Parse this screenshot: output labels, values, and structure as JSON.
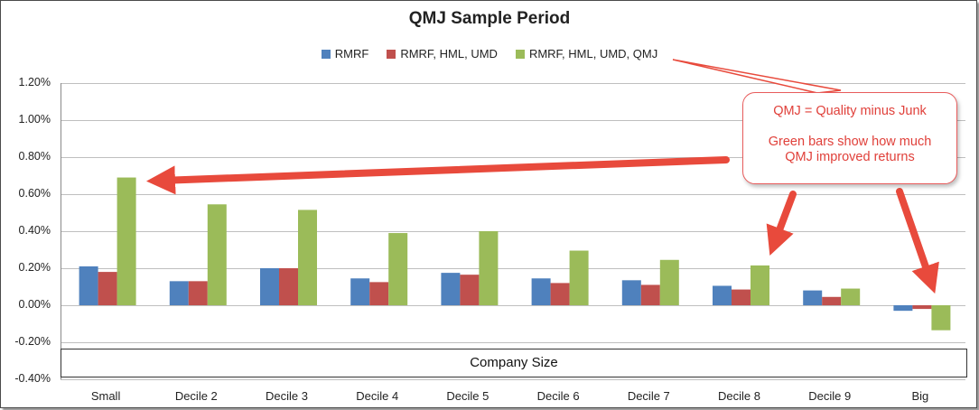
{
  "chart_data": {
    "type": "bar",
    "title": "QMJ Sample Period",
    "xlabel": "Company Size",
    "ylabel": "",
    "ylim": [
      -0.004,
      0.012
    ],
    "ytick_labels": [
      "1.20%",
      "1.00%",
      "0.80%",
      "0.60%",
      "0.40%",
      "0.20%",
      "0.00%",
      "-0.20%",
      "-0.40%"
    ],
    "ytick_values": [
      0.012,
      0.01,
      0.008,
      0.006,
      0.004,
      0.002,
      0.0,
      -0.002,
      -0.004
    ],
    "categories": [
      "Small",
      "Decile 2",
      "Decile 3",
      "Decile 4",
      "Decile 5",
      "Decile 6",
      "Decile 7",
      "Decile 8",
      "Decile 9",
      "Big"
    ],
    "series": [
      {
        "name": "RMRF",
        "color": "#4f81bd",
        "values": [
          0.0021,
          0.0013,
          0.002,
          0.00145,
          0.00175,
          0.00145,
          0.00135,
          0.00105,
          0.0008,
          -0.0003
        ]
      },
      {
        "name": "RMRF, HML, UMD",
        "color": "#c0504d",
        "values": [
          0.0018,
          0.0013,
          0.002,
          0.00125,
          0.00165,
          0.0012,
          0.0011,
          0.00085,
          0.00045,
          -0.0002
        ]
      },
      {
        "name": "RMRF, HML, UMD, QMJ",
        "color": "#9bbb59",
        "values": [
          0.0069,
          0.00545,
          0.00515,
          0.0039,
          0.004,
          0.00295,
          0.00245,
          0.00215,
          0.0009,
          -0.00135
        ]
      }
    ],
    "legend_position": "top-center",
    "grid": true
  },
  "callout": {
    "line1": "QMJ = Quality minus Junk",
    "line2": "Green bars show how much QMJ improved returns",
    "line2a": "Green bars show how much",
    "line2b": "QMJ improved returns",
    "color": "#e0403a"
  }
}
